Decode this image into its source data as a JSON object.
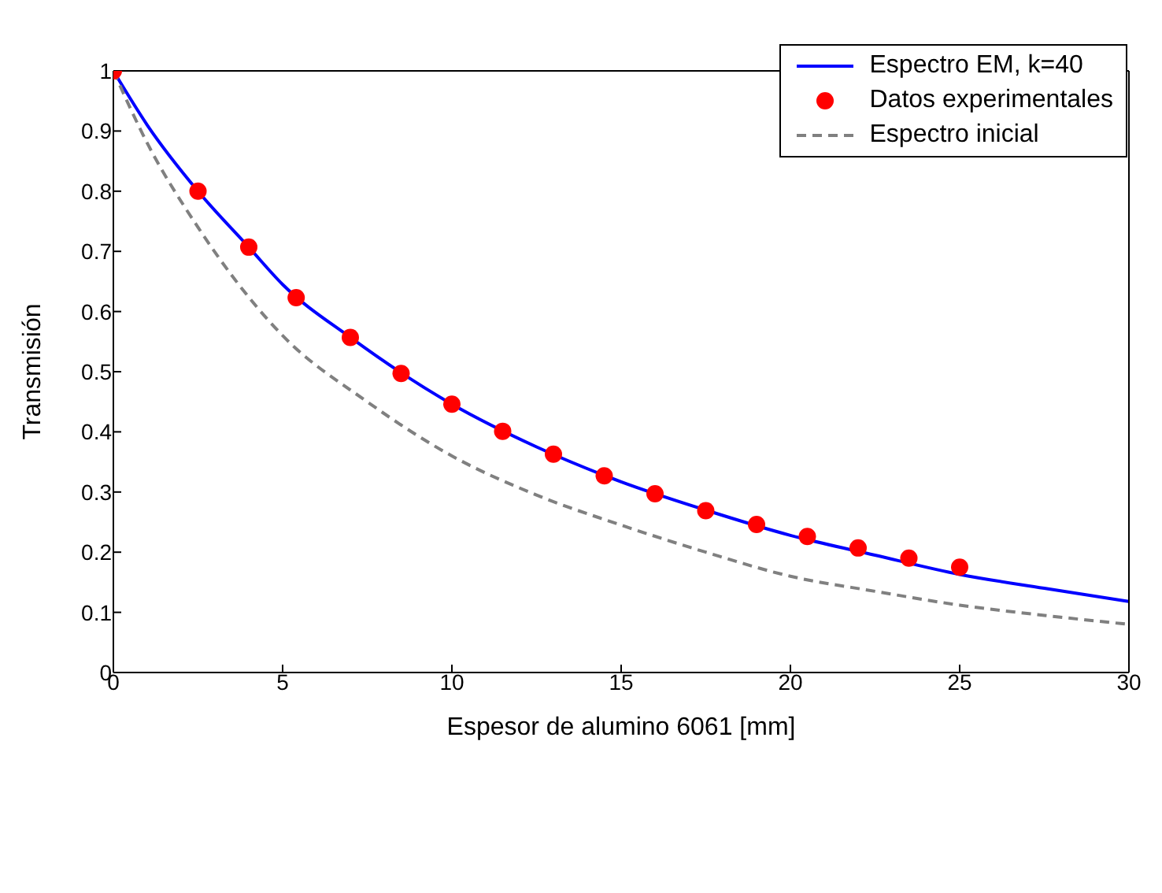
{
  "chart_data": {
    "type": "line",
    "xlabel": "Espesor de alumino 6061 [mm]",
    "ylabel": "Transmisión",
    "xlim": [
      0,
      30
    ],
    "xticks": [
      0,
      5,
      10,
      15,
      20,
      25,
      30
    ],
    "ylim": [
      0,
      1
    ],
    "yticks": [
      0,
      0.1,
      0.2,
      0.3,
      0.4,
      0.5,
      0.6,
      0.7,
      0.8,
      0.9,
      1
    ],
    "legend": "top right",
    "series": [
      {
        "name": "Espectro EM, k=40",
        "color": "#0000ff",
        "line_style": "solid",
        "marker": "none",
        "x": [
          0,
          1,
          2.5,
          4,
          5,
          7,
          10,
          12.5,
          15,
          17.5,
          20,
          22.5,
          25,
          27.5,
          30
        ],
        "values": [
          1,
          0.91,
          0.8,
          0.707,
          0.645,
          0.557,
          0.446,
          0.375,
          0.317,
          0.27,
          0.228,
          0.195,
          0.163,
          0.14,
          0.118
        ]
      },
      {
        "name": "Datos experimentales",
        "type": "scatter",
        "color": "#ff0000",
        "marker": "circle",
        "x": [
          0,
          2.5,
          4,
          5.4,
          7,
          8.5,
          10,
          11.5,
          13,
          14.5,
          16,
          17.5,
          19,
          20.5,
          22,
          23.5,
          25
        ],
        "values": [
          1,
          0.8,
          0.707,
          0.623,
          0.557,
          0.497,
          0.446,
          0.401,
          0.363,
          0.327,
          0.297,
          0.269,
          0.246,
          0.226,
          0.207,
          0.19,
          0.175
        ]
      },
      {
        "name": "Espectro inicial",
        "color": "#808080",
        "line_style": "dashed",
        "marker": "none",
        "x": [
          0,
          1,
          2.5,
          5,
          7.5,
          10,
          12.5,
          15,
          17.5,
          20,
          22.5,
          25,
          27.5,
          30
        ],
        "values": [
          1,
          0.88,
          0.74,
          0.56,
          0.45,
          0.36,
          0.295,
          0.245,
          0.2,
          0.16,
          0.135,
          0.112,
          0.095,
          0.08
        ]
      }
    ]
  }
}
